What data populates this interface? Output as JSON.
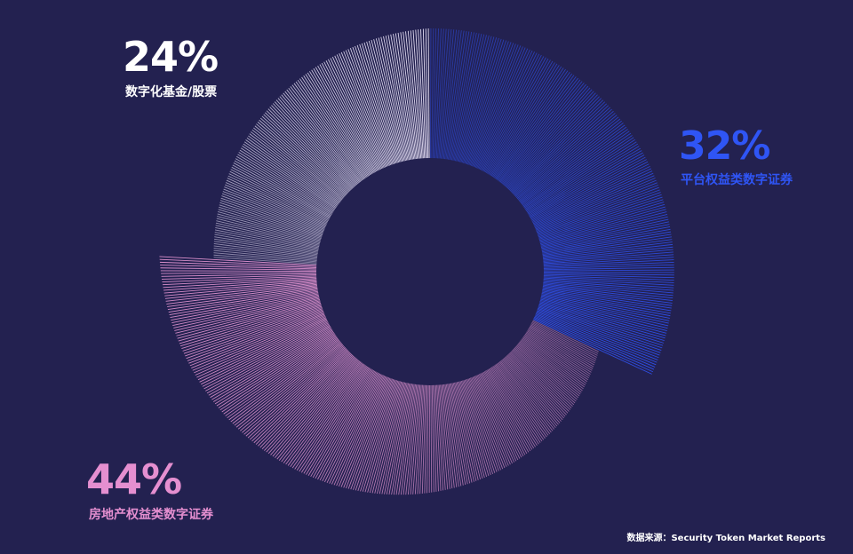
{
  "chart_data": {
    "type": "pie",
    "categories": [
      "平台权益类数字证券",
      "房地产权益类数字证券",
      "数字化基金/股票"
    ],
    "values": [
      32,
      44,
      24
    ],
    "value_labels": [
      "32%",
      "44%",
      "24%"
    ],
    "colors": [
      "#2f4fe6",
      "#d98fcb",
      "#e2dcf2"
    ],
    "label_colors": [
      "#2f55f5",
      "#e58fd0",
      "#ffffff"
    ]
  },
  "source_text": "数据来源：Security Token Market Reports"
}
